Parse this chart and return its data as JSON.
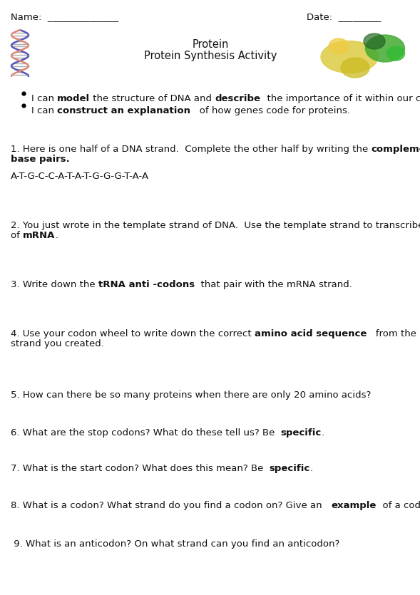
{
  "bg_color": "#ffffff",
  "text_color": "#111111",
  "name_label": "Name:  _______________",
  "date_label": "Date:  _________",
  "title1": "Protein",
  "title2": "Protein Synthesis Activity",
  "q1_dna": "A-T-G-C-C-A-T-A-T-G-G-G-T-A-A",
  "q5": "5. How can there be so many proteins when there are only 20 amino acids?",
  "q9": " 9. What is an anticodon? On what strand can you find an anticodon?"
}
